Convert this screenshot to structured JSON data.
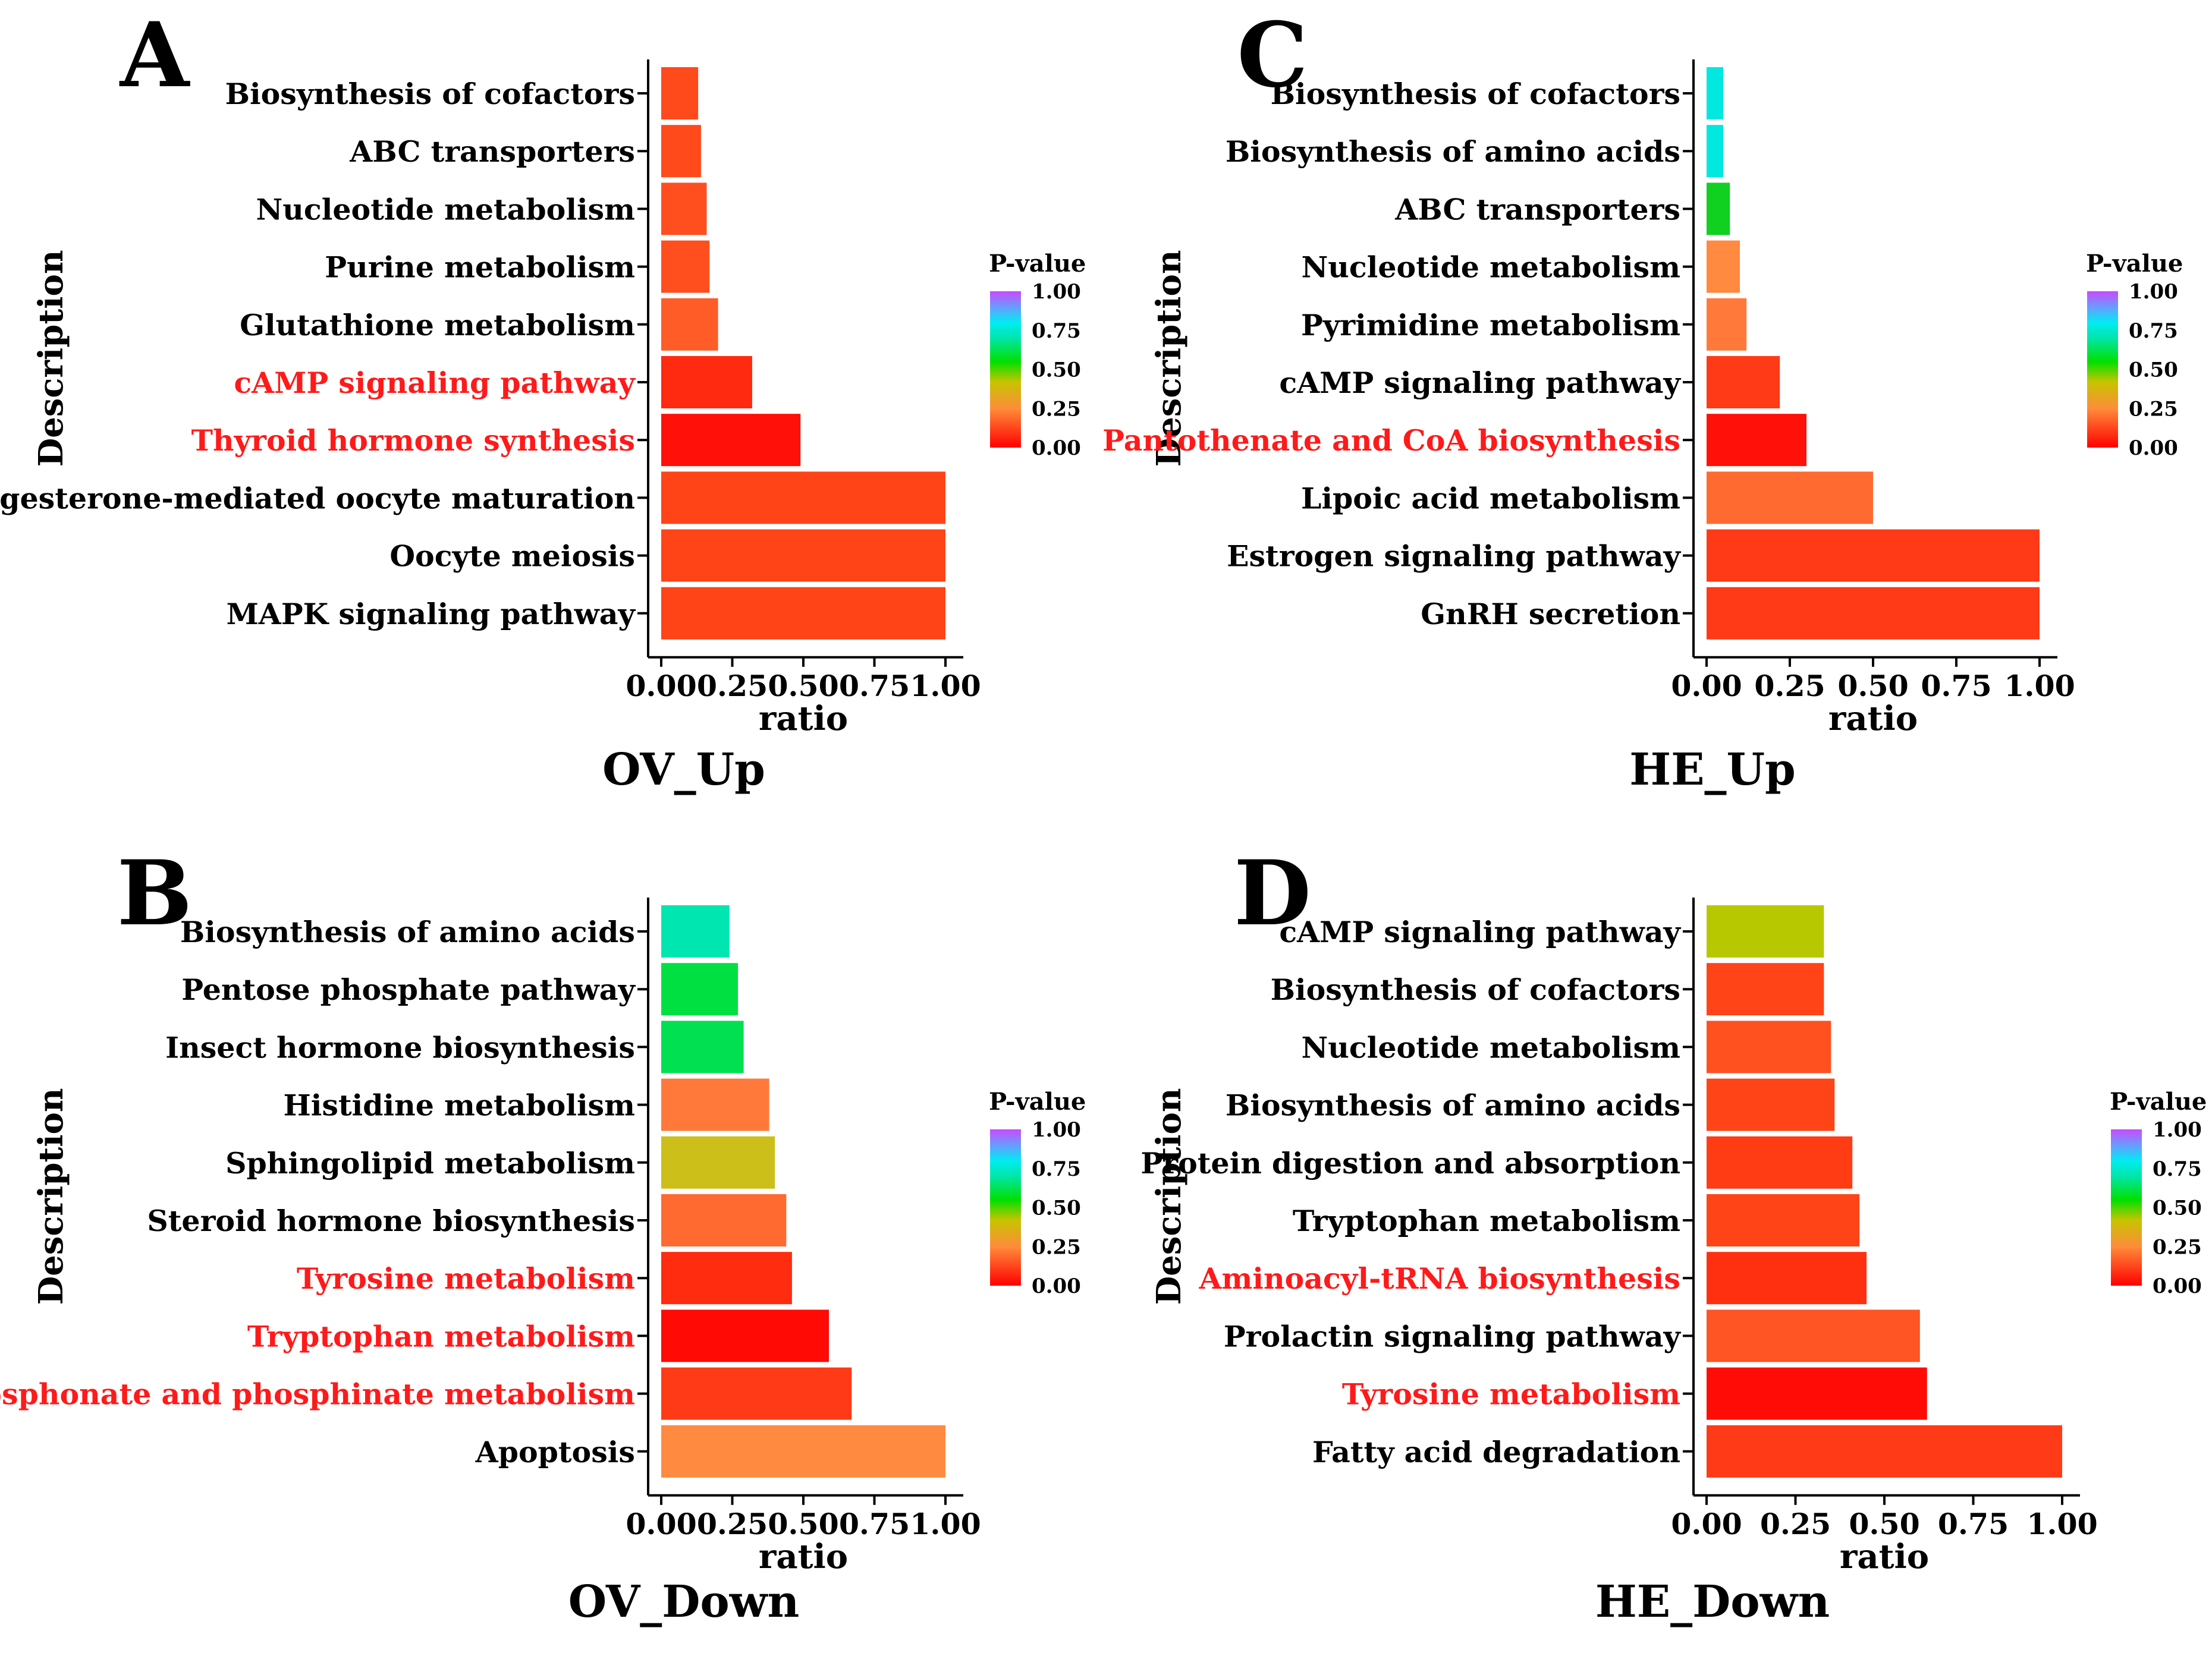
{
  "figure": {
    "legend_title": "P-value",
    "legend_ticks": [
      "1.00",
      "0.75",
      "0.50",
      "0.25",
      "0.00"
    ],
    "highlight_color": "#ff1a1a",
    "colorscale": [
      {
        "p": 0.0,
        "color": "#ff0000"
      },
      {
        "p": 0.25,
        "color": "#ff8c3a"
      },
      {
        "p": 0.42,
        "color": "#c7c400"
      },
      {
        "p": 0.55,
        "color": "#00e000"
      },
      {
        "p": 0.7,
        "color": "#00e6a8"
      },
      {
        "p": 0.8,
        "color": "#00ecf2"
      },
      {
        "p": 0.9,
        "color": "#6a9bff"
      },
      {
        "p": 1.0,
        "color": "#c84bff"
      }
    ]
  },
  "chart_data": [
    {
      "id": "A",
      "panel_label": "A",
      "type": "bar",
      "orientation": "horizontal",
      "title": "OV_Up",
      "xlabel": "ratio",
      "ylabel": "Description",
      "xlim": [
        0,
        1
      ],
      "xticks": [
        "0.00",
        "0.25",
        "0.50",
        "0.75",
        "1.00"
      ],
      "categories": [
        "Biosynthesis of cofactors",
        "ABC transporters",
        "Nucleotide metabolism",
        "Purine metabolism",
        "Glutathione metabolism",
        "cAMP signaling pathway",
        "Thyroid hormone synthesis",
        "Progesterone-mediated oocyte maturation",
        "Oocyte meiosis",
        "MAPK signaling pathway"
      ],
      "values": [
        0.13,
        0.14,
        0.16,
        0.17,
        0.2,
        0.32,
        0.49,
        1.0,
        1.0,
        1.0
      ],
      "pvalues": [
        0.08,
        0.08,
        0.09,
        0.09,
        0.12,
        0.04,
        0.01,
        0.07,
        0.07,
        0.07
      ],
      "colors": [
        "#ff4a1c",
        "#ff4a1c",
        "#ff4f1e",
        "#ff4f1e",
        "#ff5c28",
        "#ff2a10",
        "#ff1008",
        "#ff4418",
        "#ff4418",
        "#ff4418"
      ],
      "highlighted": [
        false,
        false,
        false,
        false,
        false,
        true,
        true,
        false,
        false,
        false
      ]
    },
    {
      "id": "B",
      "panel_label": "B",
      "type": "bar",
      "orientation": "horizontal",
      "title": "OV_Down",
      "xlabel": "ratio",
      "ylabel": "Description",
      "xlim": [
        0,
        1
      ],
      "xticks": [
        "0.00",
        "0.25",
        "0.50",
        "0.75",
        "1.00"
      ],
      "categories": [
        "Biosynthesis of amino acids",
        "Pentose phosphate pathway",
        "Insect hormone biosynthesis",
        "Histidine metabolism",
        "Sphingolipid metabolism",
        "Steroid hormone biosynthesis",
        "Tyrosine metabolism",
        "Tryptophan metabolism",
        "Phosphonate and phosphinate metabolism",
        "Apoptosis"
      ],
      "values": [
        0.24,
        0.27,
        0.29,
        0.38,
        0.4,
        0.44,
        0.46,
        0.59,
        0.67,
        1.0
      ],
      "pvalues": [
        0.7,
        0.56,
        0.56,
        0.22,
        0.4,
        0.18,
        0.05,
        0.01,
        0.06,
        0.24
      ],
      "colors": [
        "#00e6b0",
        "#00e040",
        "#00e050",
        "#ff7a3a",
        "#ccbf1a",
        "#ff6a30",
        "#ff2c10",
        "#ff0a04",
        "#ff3a16",
        "#ff8a40"
      ],
      "highlighted": [
        false,
        false,
        false,
        false,
        false,
        false,
        true,
        true,
        true,
        false
      ]
    },
    {
      "id": "C",
      "panel_label": "C",
      "type": "bar",
      "orientation": "horizontal",
      "title": "HE_Up",
      "xlabel": "ratio",
      "ylabel": "Description",
      "xlim": [
        0,
        1
      ],
      "xticks": [
        "0.00",
        "0.25",
        "0.50",
        "0.75",
        "1.00"
      ],
      "categories": [
        "Biosynthesis of cofactors",
        "Biosynthesis of amino acids",
        "ABC transporters",
        "Nucleotide metabolism",
        "Pyrimidine metabolism",
        "cAMP signaling pathway",
        "Pantothenate and CoA biosynthesis",
        "Lipoic acid metabolism",
        "Estrogen signaling pathway",
        "GnRH secretion"
      ],
      "values": [
        0.05,
        0.05,
        0.07,
        0.1,
        0.12,
        0.22,
        0.3,
        0.5,
        1.0,
        1.0
      ],
      "pvalues": [
        0.8,
        0.8,
        0.55,
        0.25,
        0.22,
        0.06,
        0.01,
        0.16,
        0.06,
        0.06
      ],
      "colors": [
        "#00e8e0",
        "#00e8e0",
        "#10d020",
        "#ff8a40",
        "#ff7a3a",
        "#ff3a16",
        "#ff1008",
        "#ff6a30",
        "#ff3a16",
        "#ff3a16"
      ],
      "highlighted": [
        false,
        false,
        false,
        false,
        false,
        false,
        true,
        false,
        false,
        false
      ]
    },
    {
      "id": "D",
      "panel_label": "D",
      "type": "bar",
      "orientation": "horizontal",
      "title": "HE_Down",
      "xlabel": "ratio",
      "ylabel": "Description",
      "xlim": [
        0,
        1
      ],
      "xticks": [
        "0.00",
        "0.25",
        "0.50",
        "0.75",
        "1.00"
      ],
      "categories": [
        "cAMP signaling pathway",
        "Biosynthesis of cofactors",
        "Nucleotide metabolism",
        "Biosynthesis of amino acids",
        "Protein digestion and absorption",
        "Tryptophan metabolism",
        "Aminoacyl-tRNA biosynthesis",
        "Prolactin signaling pathway",
        "Tyrosine metabolism",
        "Fatty acid degradation"
      ],
      "values": [
        0.33,
        0.33,
        0.35,
        0.36,
        0.41,
        0.43,
        0.45,
        0.6,
        0.62,
        1.0
      ],
      "pvalues": [
        0.4,
        0.08,
        0.1,
        0.07,
        0.07,
        0.08,
        0.05,
        0.12,
        0.01,
        0.06
      ],
      "colors": [
        "#b8c800",
        "#ff4418",
        "#ff5020",
        "#ff4418",
        "#ff3c14",
        "#ff4418",
        "#ff3010",
        "#ff5424",
        "#ff0c06",
        "#ff3a16"
      ],
      "highlighted": [
        false,
        false,
        false,
        false,
        false,
        false,
        true,
        false,
        true,
        false
      ]
    }
  ]
}
